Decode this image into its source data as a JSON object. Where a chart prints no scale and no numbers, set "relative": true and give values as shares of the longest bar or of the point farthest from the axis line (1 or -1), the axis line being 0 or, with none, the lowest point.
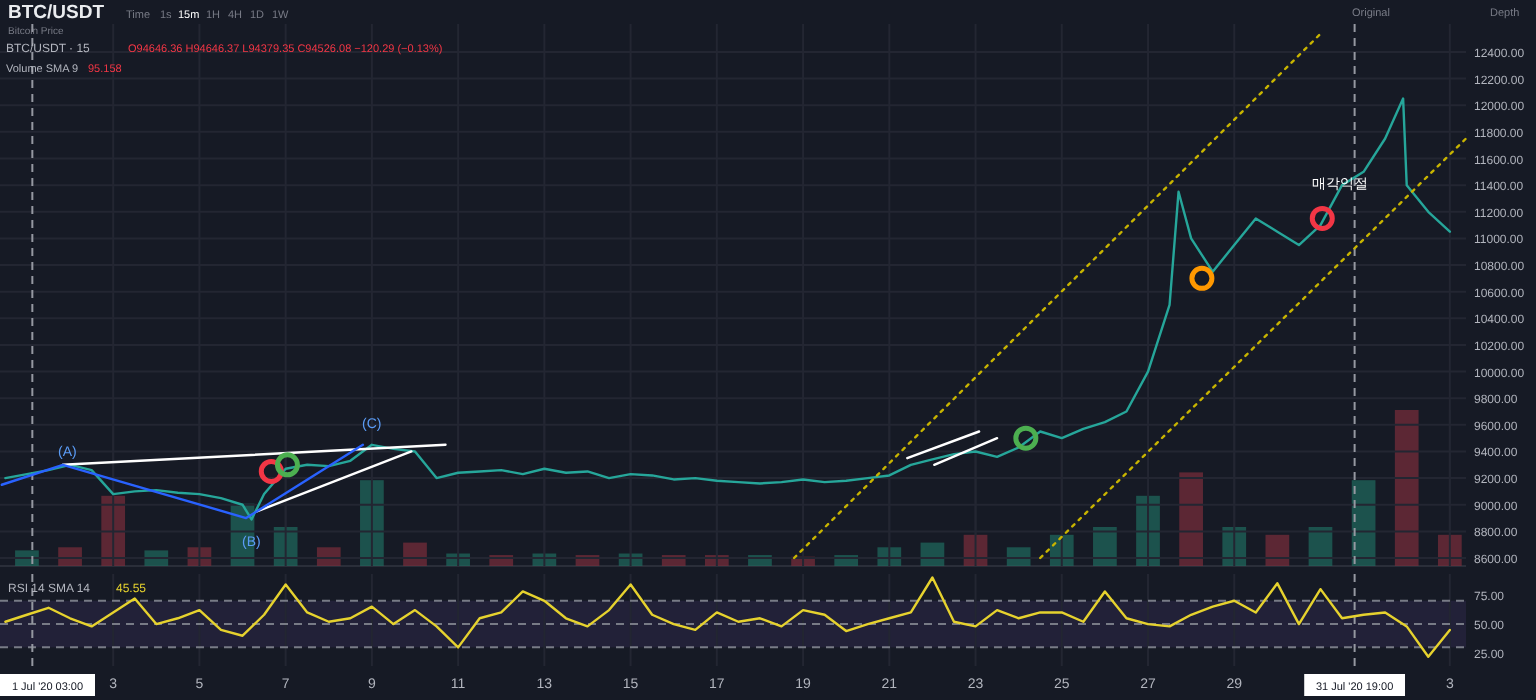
{
  "chart_data": [
    {
      "type": "line",
      "title": "BTC/USDT",
      "annotations": [
        "Bitcoin Price",
        "Time",
        "1s",
        "15m",
        "1H",
        "4H",
        "1D",
        "1W",
        "Original",
        "Depth",
        "BTC/USDT · 15",
        "O94646.36 H94646.37 L94379.35 C94526.08 −120.29 (−0.13%)",
        "Volume SMA 9",
        "95.158",
        "(A)",
        "(B)",
        "(C)",
        "매각익절"
      ],
      "xlim": [
        "2020-06-30T09:00",
        "2020-08-03T09:00"
      ],
      "ylim": [
        8540,
        12610
      ],
      "yticks": [
        {
          "value": 8600,
          "label": "8600.00"
        },
        {
          "value": 8800,
          "label": "8800.00"
        },
        {
          "value": 9000,
          "label": "9000.00"
        },
        {
          "value": 9200,
          "label": "9200.00"
        },
        {
          "value": 9400,
          "label": "9400.00"
        },
        {
          "value": 9600,
          "label": "9600.00"
        },
        {
          "value": 9800,
          "label": "9800.00"
        },
        {
          "value": 10000,
          "label": "10000.00"
        },
        {
          "value": 10200,
          "label": "10200.00"
        },
        {
          "value": 10400,
          "label": "10400.00"
        },
        {
          "value": 10600,
          "label": "10600.00"
        },
        {
          "value": 10800,
          "label": "10800.00"
        },
        {
          "value": 11000,
          "label": "11000.00"
        },
        {
          "value": 11200,
          "label": "11200.00"
        },
        {
          "value": 11400,
          "label": "11400.00"
        },
        {
          "value": 11600,
          "label": "11600.00"
        },
        {
          "value": 11800,
          "label": "11800.00"
        },
        {
          "value": 12000,
          "label": "12000.00"
        },
        {
          "value": 12200,
          "label": "12200.00"
        },
        {
          "value": 12400,
          "label": "12400.00"
        }
      ],
      "xticks": [
        {
          "value": "2020-07-03",
          "label": null
        },
        {
          "value": "2020-07-05",
          "label": null
        },
        {
          "value": "2020-07-07",
          "label": null
        },
        {
          "value": "2020-07-09",
          "label": null
        },
        {
          "value": "2020-07-11",
          "label": null
        },
        {
          "value": "2020-07-13",
          "label": null
        },
        {
          "value": "2020-07-15",
          "label": null
        },
        {
          "value": "2020-07-17",
          "label": null
        },
        {
          "value": "2020-07-19",
          "label": null
        },
        {
          "value": "2020-07-21",
          "label": null
        },
        {
          "value": "2020-07-23",
          "label": null
        },
        {
          "value": "2020-07-25",
          "label": null
        },
        {
          "value": "2020-07-27",
          "label": null
        },
        {
          "value": "2020-07-29",
          "label": null
        },
        {
          "value": "2020-08-03",
          "label": null
        }
      ],
      "tick_labels": "y",
      "grid": true,
      "ref_lines": [
        {
          "axis": "x",
          "value": "2020-07-01T03:00",
          "label": null,
          "line_style": "dashed",
          "color": "#9598a1"
        },
        {
          "axis": "x",
          "value": "2020-07-31T19:00",
          "label": null,
          "line_style": "dashed",
          "color": "#9598a1"
        }
      ],
      "series": [
        {
          "color": "#26a69a",
          "x": [
            "2020-06-30T12:00",
            "2020-07-01T00:00",
            "2020-07-01T12:00",
            "2020-07-02T00:00",
            "2020-07-02T12:00",
            "2020-07-03T00:00",
            "2020-07-03T12:00",
            "2020-07-04T00:00",
            "2020-07-04T12:00",
            "2020-07-05T00:00",
            "2020-07-05T12:00",
            "2020-07-06T00:00",
            "2020-07-06T05:00",
            "2020-07-06T12:00",
            "2020-07-07T00:00",
            "2020-07-07T12:00",
            "2020-07-08T00:00",
            "2020-07-08T12:00",
            "2020-07-09T00:00",
            "2020-07-09T12:00",
            "2020-07-10T00:00",
            "2020-07-10T12:00",
            "2020-07-11T00:00",
            "2020-07-11T12:00",
            "2020-07-12T00:00",
            "2020-07-12T12:00",
            "2020-07-13T00:00",
            "2020-07-13T12:00",
            "2020-07-14T00:00",
            "2020-07-14T12:00",
            "2020-07-15T00:00",
            "2020-07-15T12:00",
            "2020-07-16T00:00",
            "2020-07-16T12:00",
            "2020-07-17T00:00",
            "2020-07-17T12:00",
            "2020-07-18T00:00",
            "2020-07-18T12:00",
            "2020-07-19T00:00",
            "2020-07-19T12:00",
            "2020-07-20T00:00",
            "2020-07-20T12:00",
            "2020-07-21T00:00",
            "2020-07-21T12:00",
            "2020-07-22T00:00",
            "2020-07-22T12:00",
            "2020-07-23T00:00",
            "2020-07-23T12:00",
            "2020-07-24T00:00",
            "2020-07-24T12:00",
            "2020-07-25T00:00",
            "2020-07-25T12:00",
            "2020-07-26T00:00",
            "2020-07-26T12:00",
            "2020-07-27T00:00",
            "2020-07-27T12:00",
            "2020-07-27T17:00",
            "2020-07-28T00:00",
            "2020-07-28T12:00",
            "2020-07-29T00:00",
            "2020-07-29T12:00",
            "2020-07-30T00:00",
            "2020-07-30T12:00",
            "2020-07-31T00:00",
            "2020-07-31T12:00",
            "2020-08-01T00:00",
            "2020-08-01T12:00",
            "2020-08-01T22:00",
            "2020-08-02T00:00",
            "2020-08-02T12:00",
            "2020-08-03T00:00"
          ],
          "values": [
            9200,
            9230,
            9260,
            9300,
            9260,
            9080,
            9100,
            9110,
            9090,
            9080,
            9050,
            9000,
            8890,
            9080,
            9270,
            9300,
            9290,
            9330,
            9450,
            9420,
            9400,
            9200,
            9240,
            9250,
            9260,
            9230,
            9270,
            9240,
            9250,
            9200,
            9230,
            9220,
            9190,
            9200,
            9180,
            9170,
            9160,
            9170,
            9190,
            9170,
            9180,
            9200,
            9220,
            9300,
            9340,
            9380,
            9400,
            9360,
            9430,
            9550,
            9500,
            9570,
            9620,
            9700,
            10000,
            10500,
            11350,
            11000,
            10750,
            10950,
            11150,
            11050,
            10950,
            11100,
            11400,
            11500,
            11750,
            12050,
            11400,
            11200,
            11050
          ]
        },
        {
          "color": "#c8b400",
          "line_style": "dotted",
          "x": [
            "2020-07-24T12:00",
            "2020-08-03T09:00"
          ],
          "values": [
            8600,
            11750
          ]
        },
        {
          "color": "#c8b400",
          "line_style": "dotted",
          "x": [
            "2020-07-18T19:00",
            "2020-07-31T01:00"
          ],
          "values": [
            8600,
            12550
          ]
        },
        {
          "color": "#ffffff",
          "x": [
            "2020-07-01T20:00",
            "2020-07-10T17:00"
          ],
          "values": [
            9300,
            9450
          ]
        },
        {
          "color": "#ffffff",
          "x": [
            "2020-07-06T08:00",
            "2020-07-09T22:00"
          ],
          "values": [
            8950,
            9400
          ]
        },
        {
          "color": "#ffffff",
          "x": [
            "2020-07-21T10:00",
            "2020-07-23T02:00"
          ],
          "values": [
            9350,
            9550
          ]
        },
        {
          "color": "#ffffff",
          "x": [
            "2020-07-22T01:00",
            "2020-07-23T12:00"
          ],
          "values": [
            9300,
            9500
          ]
        },
        {
          "color": "#2962ff",
          "x": [
            "2020-06-30T10:00",
            "2020-07-01T20:00",
            "2020-07-06T02:00",
            "2020-07-08T19:00"
          ],
          "values": [
            9150,
            9300,
            8900,
            9450
          ]
        },
        {
          "type": "scatter",
          "marker": "circle",
          "x": [
            "2020-07-06T16:00",
            "2020-07-07T01:00",
            "2020-07-24T04:00",
            "2020-07-28T06:00",
            "2020-07-31T01:00"
          ],
          "values": [
            9250,
            9300,
            9500,
            10700,
            11150
          ],
          "colors": [
            "#f23645",
            "#4caf50",
            "#4caf50",
            "#ff9800",
            "#f23645"
          ]
        }
      ]
    },
    {
      "type": "bar",
      "relative": true,
      "tick_labels": false,
      "xlim": [
        "2020-06-30T09:00",
        "2020-08-03T09:00"
      ],
      "xticks": [
        {
          "value": "2020-07-03",
          "label": null
        },
        {
          "value": "2020-07-05",
          "label": null
        },
        {
          "value": "2020-07-07",
          "label": null
        },
        {
          "value": "2020-07-09",
          "label": null
        },
        {
          "value": "2020-07-11",
          "label": null
        },
        {
          "value": "2020-07-13",
          "label": null
        },
        {
          "value": "2020-07-15",
          "label": null
        },
        {
          "value": "2020-07-17",
          "label": null
        },
        {
          "value": "2020-07-19",
          "label": null
        },
        {
          "value": "2020-07-21",
          "label": null
        },
        {
          "value": "2020-07-23",
          "label": null
        },
        {
          "value": "2020-07-25",
          "label": null
        },
        {
          "value": "2020-07-27",
          "label": null
        },
        {
          "value": "2020-07-29",
          "label": null
        },
        {
          "value": "2020-08-03",
          "label": null
        }
      ],
      "grid": "x",
      "x": [
        "2020-07-01",
        "2020-07-02",
        "2020-07-03",
        "2020-07-04",
        "2020-07-05",
        "2020-07-06",
        "2020-07-07",
        "2020-07-08",
        "2020-07-09",
        "2020-07-10",
        "2020-07-11",
        "2020-07-12",
        "2020-07-13",
        "2020-07-14",
        "2020-07-15",
        "2020-07-16",
        "2020-07-17",
        "2020-07-18",
        "2020-07-19",
        "2020-07-20",
        "2020-07-21",
        "2020-07-22",
        "2020-07-23",
        "2020-07-24",
        "2020-07-25",
        "2020-07-26",
        "2020-07-27",
        "2020-07-28",
        "2020-07-29",
        "2020-07-30",
        "2020-07-31",
        "2020-08-01",
        "2020-08-02",
        "2020-08-03"
      ],
      "values": [
        0.1,
        0.12,
        0.45,
        0.1,
        0.12,
        0.4,
        0.25,
        0.12,
        0.55,
        0.15,
        0.08,
        0.07,
        0.08,
        0.07,
        0.08,
        0.07,
        0.07,
        0.07,
        0.06,
        0.07,
        0.12,
        0.15,
        0.2,
        0.12,
        0.2,
        0.25,
        0.45,
        0.6,
        0.25,
        0.2,
        0.25,
        0.55,
        1,
        0.2
      ],
      "colors": [
        "#1f6b5e",
        "#7a2e3a",
        "#7a2e3a",
        "#1f6b5e",
        "#7a2e3a",
        "#1f6b5e",
        "#1f6b5e",
        "#7a2e3a",
        "#1f6b5e",
        "#7a2e3a",
        "#1f6b5e",
        "#7a2e3a",
        "#1f6b5e",
        "#7a2e3a",
        "#1f6b5e",
        "#7a2e3a",
        "#7a2e3a",
        "#1f6b5e",
        "#7a2e3a",
        "#1f6b5e",
        "#1f6b5e",
        "#1f6b5e",
        "#7a2e3a",
        "#1f6b5e",
        "#1f6b5e",
        "#1f6b5e",
        "#1f6b5e",
        "#7a2e3a",
        "#1f6b5e",
        "#7a2e3a",
        "#1f6b5e",
        "#1f6b5e",
        "#7a2e3a",
        "#7a2e3a"
      ]
    },
    {
      "type": "line",
      "title": "RSI 14 SMA 14",
      "subtitle": "45.55",
      "xlim": [
        "2020-06-30T09:00",
        "2020-08-03T09:00"
      ],
      "xticks": [
        {
          "value": "2020-07-03",
          "label": "3"
        },
        {
          "value": "2020-07-05",
          "label": "5"
        },
        {
          "value": "2020-07-07",
          "label": "7"
        },
        {
          "value": "2020-07-09",
          "label": "9"
        },
        {
          "value": "2020-07-11",
          "label": "11"
        },
        {
          "value": "2020-07-13",
          "label": "13"
        },
        {
          "value": "2020-07-15",
          "label": "15"
        },
        {
          "value": "2020-07-17",
          "label": "17"
        },
        {
          "value": "2020-07-19",
          "label": "19"
        },
        {
          "value": "2020-07-21",
          "label": "21"
        },
        {
          "value": "2020-07-23",
          "label": "23"
        },
        {
          "value": "2020-07-25",
          "label": "25"
        },
        {
          "value": "2020-07-27",
          "label": "27"
        },
        {
          "value": "2020-07-29",
          "label": "29"
        },
        {
          "value": "2020-08-03",
          "label": "3"
        }
      ],
      "ylim": [
        14,
        93
      ],
      "yticks": [
        {
          "value": 25,
          "label": "25.00"
        },
        {
          "value": 50,
          "label": "50.00"
        },
        {
          "value": 75,
          "label": "75.00"
        }
      ],
      "grid": "x",
      "bands": [
        {
          "axis": "y",
          "from": 30,
          "to": 70,
          "color": "#7e57c2"
        }
      ],
      "ref_lines": [
        {
          "axis": "y",
          "value": 70,
          "line_style": "dashed",
          "color": "#787b86"
        },
        {
          "axis": "y",
          "value": 50,
          "line_style": "dashed",
          "color": "#787b86"
        },
        {
          "axis": "y",
          "value": 30,
          "line_style": "dashed",
          "color": "#787b86"
        },
        {
          "axis": "x",
          "value": "2020-07-01T03:00",
          "label": "1 Jul '20 03:00",
          "line_style": "dashed",
          "color": "#9598a1"
        },
        {
          "axis": "x",
          "value": "2020-07-31T19:00",
          "label": "31 Jul '20 19:00",
          "line_style": "dashed",
          "color": "#9598a1"
        }
      ],
      "series": [
        {
          "color": "#e6d22e",
          "x": [
            "2020-06-30T12:00",
            "2020-07-01T00:00",
            "2020-07-01T12:00",
            "2020-07-02T00:00",
            "2020-07-02T12:00",
            "2020-07-03T00:00",
            "2020-07-03T12:00",
            "2020-07-04T00:00",
            "2020-07-04T12:00",
            "2020-07-05T00:00",
            "2020-07-05T12:00",
            "2020-07-06T00:00",
            "2020-07-06T12:00",
            "2020-07-07T00:00",
            "2020-07-07T12:00",
            "2020-07-08T00:00",
            "2020-07-08T12:00",
            "2020-07-09T00:00",
            "2020-07-09T12:00",
            "2020-07-10T00:00",
            "2020-07-10T12:00",
            "2020-07-11T00:00",
            "2020-07-11T12:00",
            "2020-07-12T00:00",
            "2020-07-12T12:00",
            "2020-07-13T00:00",
            "2020-07-13T12:00",
            "2020-07-14T00:00",
            "2020-07-14T12:00",
            "2020-07-15T00:00",
            "2020-07-15T12:00",
            "2020-07-16T00:00",
            "2020-07-16T12:00",
            "2020-07-17T00:00",
            "2020-07-17T12:00",
            "2020-07-18T00:00",
            "2020-07-18T12:00",
            "2020-07-19T00:00",
            "2020-07-19T12:00",
            "2020-07-20T00:00",
            "2020-07-20T12:00",
            "2020-07-21T00:00",
            "2020-07-21T12:00",
            "2020-07-22T00:00",
            "2020-07-22T12:00",
            "2020-07-23T00:00",
            "2020-07-23T12:00",
            "2020-07-24T00:00",
            "2020-07-24T12:00",
            "2020-07-25T00:00",
            "2020-07-25T12:00",
            "2020-07-26T00:00",
            "2020-07-26T12:00",
            "2020-07-27T00:00",
            "2020-07-27T12:00",
            "2020-07-28T00:00",
            "2020-07-28T12:00",
            "2020-07-29T00:00",
            "2020-07-29T12:00",
            "2020-07-30T00:00",
            "2020-07-30T12:00",
            "2020-07-31T00:00",
            "2020-07-31T12:00",
            "2020-08-01T00:00",
            "2020-08-01T12:00",
            "2020-08-02T00:00",
            "2020-08-02T12:00",
            "2020-08-03T00:00"
          ],
          "values": [
            52,
            58,
            64,
            55,
            48,
            60,
            72,
            50,
            55,
            62,
            45,
            40,
            58,
            84,
            60,
            52,
            55,
            65,
            50,
            62,
            48,
            30,
            55,
            60,
            78,
            70,
            55,
            48,
            62,
            84,
            58,
            50,
            45,
            60,
            52,
            55,
            48,
            62,
            58,
            44,
            50,
            55,
            60,
            90,
            52,
            48,
            62,
            55,
            60,
            60,
            52,
            78,
            55,
            50,
            48,
            58,
            65,
            70,
            60,
            85,
            50,
            80,
            55,
            58,
            60,
            48,
            22,
            45
          ]
        }
      ]
    }
  ]
}
